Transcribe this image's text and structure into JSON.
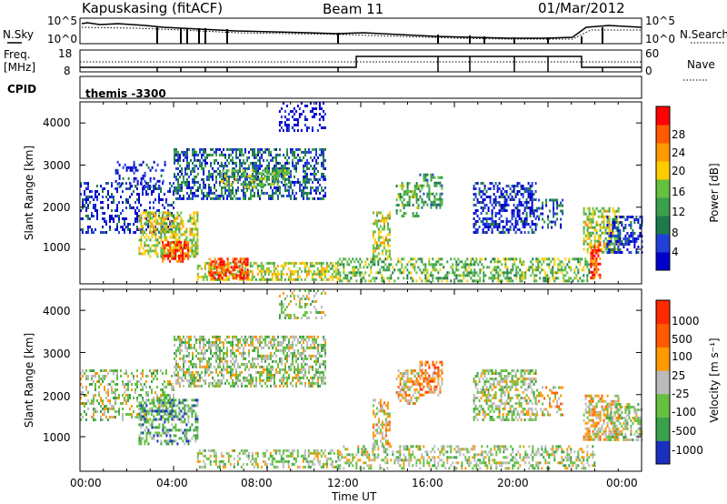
{
  "header": {
    "station": "Kapuskasing (fitACF)",
    "beam": "Beam 11",
    "date": "01/Mar/2012"
  },
  "strip_labels": {
    "nsky": "N.Sky",
    "nsearch": "N.Search",
    "freq_line1": "Freq.",
    "freq_line2": "[MHz]",
    "nave": "Nave",
    "cpid": "CPID",
    "cpid_value": "themis -3300"
  },
  "noise_axis": {
    "left_ticks": [
      "10^5",
      "10^0"
    ],
    "right_ticks": [
      "10^5",
      "10^0"
    ]
  },
  "freq_axis": {
    "left_ticks": [
      "18",
      "8"
    ],
    "right_ticks": [
      "60",
      "0"
    ]
  },
  "colors": {
    "power": [
      "#0000cc",
      "#2040d8",
      "#1e7a4a",
      "#3aa04a",
      "#66c040",
      "#ffcc00",
      "#ff9900",
      "#ff5a00",
      "#ff0000"
    ],
    "velocity": [
      "#1a2fbf",
      "#3aa04a",
      "#66c040",
      "#bbbbbb",
      "#ff9900",
      "#ff5a00",
      "#ff2a00"
    ]
  },
  "chart_data": [
    {
      "type": "heatmap",
      "name": "power",
      "ylabel": "Slant Range [km]",
      "yticks": [
        "4000",
        "3000",
        "2000",
        "1000"
      ],
      "ylim": [
        180,
        4500
      ],
      "xlim_hours": [
        0,
        24
      ],
      "xticks": [
        "00:00",
        "04:00",
        "08:00",
        "12:00",
        "16:00",
        "20:00",
        "00:00"
      ],
      "colorbar": {
        "label": "Power [dB]",
        "ticks": [
          "28",
          "24",
          "20",
          "16",
          "12",
          "8",
          "4"
        ]
      },
      "regions": [
        {
          "t": [
            0.0,
            4.0
          ],
          "r": [
            1400,
            2600
          ],
          "lvl": 1,
          "d": 0.35
        },
        {
          "t": [
            1.5,
            3.6
          ],
          "r": [
            2500,
            3100
          ],
          "lvl": 1,
          "d": 0.25
        },
        {
          "t": [
            2.5,
            5.0
          ],
          "r": [
            800,
            1900
          ],
          "lvl": 5,
          "d": 0.6
        },
        {
          "t": [
            3.5,
            4.6
          ],
          "r": [
            700,
            1200
          ],
          "lvl": 8,
          "d": 0.6
        },
        {
          "t": [
            4.0,
            10.5
          ],
          "r": [
            2200,
            3400
          ],
          "lvl": 2,
          "d": 0.5
        },
        {
          "t": [
            6.0,
            9.0
          ],
          "r": [
            2500,
            2900
          ],
          "lvl": 4,
          "d": 0.5
        },
        {
          "t": [
            8.5,
            10.5
          ],
          "r": [
            3800,
            4500
          ],
          "lvl": 0,
          "d": 0.3
        },
        {
          "t": [
            5.0,
            11.0
          ],
          "r": [
            300,
            700
          ],
          "lvl": 5,
          "d": 0.55
        },
        {
          "t": [
            5.5,
            7.2
          ],
          "r": [
            300,
            800
          ],
          "lvl": 8,
          "d": 0.6
        },
        {
          "t": [
            11.0,
            22.0
          ],
          "r": [
            250,
            800
          ],
          "lvl": 4,
          "d": 0.45
        },
        {
          "t": [
            12.5,
            13.2
          ],
          "r": [
            800,
            1900
          ],
          "lvl": 5,
          "d": 0.5
        },
        {
          "t": [
            13.5,
            14.5
          ],
          "r": [
            1800,
            2600
          ],
          "lvl": 4,
          "d": 0.45
        },
        {
          "t": [
            14.5,
            15.5
          ],
          "r": [
            2000,
            2800
          ],
          "lvl": 3,
          "d": 0.5
        },
        {
          "t": [
            16.8,
            19.5
          ],
          "r": [
            1400,
            2600
          ],
          "lvl": 1,
          "d": 0.5
        },
        {
          "t": [
            19.5,
            20.6
          ],
          "r": [
            1500,
            2200
          ],
          "lvl": 2,
          "d": 0.35
        },
        {
          "t": [
            21.5,
            23.0
          ],
          "r": [
            900,
            2000
          ],
          "lvl": 5,
          "d": 0.55
        },
        {
          "t": [
            21.8,
            22.2
          ],
          "r": [
            300,
            1200
          ],
          "lvl": 8,
          "d": 0.6
        },
        {
          "t": [
            22.5,
            24.0
          ],
          "r": [
            900,
            1800
          ],
          "lvl": 1,
          "d": 0.5
        }
      ]
    },
    {
      "type": "heatmap",
      "name": "velocity",
      "ylabel": "Slant Range [km]",
      "yticks": [
        "4000",
        "3000",
        "2000",
        "1000"
      ],
      "ylim": [
        180,
        4500
      ],
      "xlim_hours": [
        0,
        24
      ],
      "xticks": [
        "00:00",
        "04:00",
        "08:00",
        "12:00",
        "16:00",
        "20:00",
        "00:00"
      ],
      "xlabel": "Time UT",
      "colorbar": {
        "label": "Velocity [m s⁻¹]",
        "ticks": [
          "1000",
          "500",
          "100",
          "25",
          "-25",
          "-100",
          "-500",
          "-1000"
        ]
      },
      "regions": [
        {
          "t": [
            0.0,
            4.0
          ],
          "r": [
            1400,
            2600
          ],
          "lvl": 3,
          "d": 0.35
        },
        {
          "t": [
            2.5,
            5.0
          ],
          "r": [
            800,
            1900
          ],
          "lvl": 2,
          "d": 0.5
        },
        {
          "t": [
            4.0,
            10.5
          ],
          "r": [
            2200,
            3400
          ],
          "lvl": 3,
          "d": 0.55
        },
        {
          "t": [
            8.5,
            10.5
          ],
          "r": [
            3800,
            4500
          ],
          "lvl": 3,
          "d": 0.3
        },
        {
          "t": [
            5.0,
            11.0
          ],
          "r": [
            300,
            700
          ],
          "lvl": 3,
          "d": 0.4
        },
        {
          "t": [
            11.0,
            22.0
          ],
          "r": [
            250,
            800
          ],
          "lvl": 3,
          "d": 0.4
        },
        {
          "t": [
            12.5,
            13.2
          ],
          "r": [
            800,
            1900
          ],
          "lvl": 4,
          "d": 0.5
        },
        {
          "t": [
            13.5,
            14.5
          ],
          "r": [
            1800,
            2600
          ],
          "lvl": 4,
          "d": 0.5
        },
        {
          "t": [
            14.5,
            15.5
          ],
          "r": [
            2000,
            2800
          ],
          "lvl": 5,
          "d": 0.5
        },
        {
          "t": [
            16.8,
            19.5
          ],
          "r": [
            1400,
            2600
          ],
          "lvl": 3,
          "d": 0.5
        },
        {
          "t": [
            19.5,
            20.6
          ],
          "r": [
            1500,
            2200
          ],
          "lvl": 4,
          "d": 0.35
        },
        {
          "t": [
            21.5,
            23.0
          ],
          "r": [
            900,
            2000
          ],
          "lvl": 4,
          "d": 0.55
        },
        {
          "t": [
            22.5,
            24.0
          ],
          "r": [
            900,
            1800
          ],
          "lvl": 3,
          "d": 0.5
        }
      ]
    }
  ]
}
